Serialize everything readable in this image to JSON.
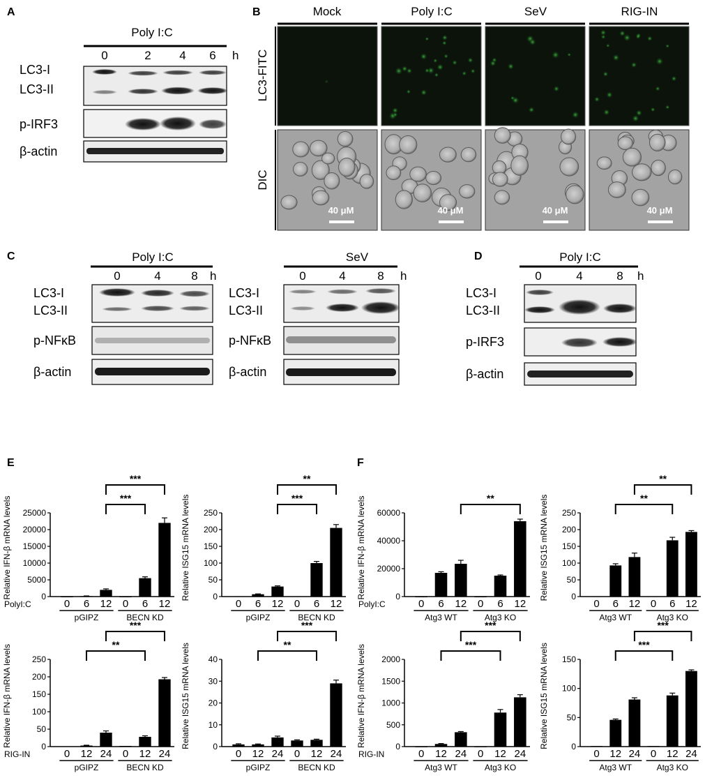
{
  "panels": {
    "A": {
      "letter": "A",
      "treatment": "Poly I:C",
      "times": [
        "0",
        "2",
        "4",
        "6"
      ],
      "unit": "h",
      "rows": [
        "LC3-I",
        "LC3-II",
        "p-IRF3",
        "β-actin"
      ]
    },
    "B": {
      "letter": "B",
      "columns": [
        "Mock",
        "Poly I:C",
        "SeV",
        "RIG-IN"
      ],
      "rows": [
        "LC3-FITC",
        "DIC"
      ],
      "scale": "40 μM"
    },
    "C": {
      "letter": "C",
      "left": {
        "treatment": "Poly I:C",
        "times": [
          "0",
          "4",
          "8"
        ],
        "unit": "h",
        "rows": [
          "LC3-I",
          "LC3-II",
          "p-NFκB",
          "β-actin"
        ]
      },
      "right": {
        "treatment": "SeV",
        "times": [
          "0",
          "4",
          "8"
        ],
        "unit": "h",
        "rows": [
          "LC3-I",
          "LC3-II",
          "p-NFκB",
          "β-actin"
        ]
      }
    },
    "D": {
      "letter": "D",
      "treatment": "Poly I:C",
      "times": [
        "0",
        "4",
        "8"
      ],
      "unit": "h",
      "rows": [
        "LC3-I",
        "LC3-II",
        "p-IRF3",
        "β-actin"
      ]
    },
    "E": {
      "letter": "E"
    },
    "F": {
      "letter": "F"
    }
  },
  "chart_data": [
    {
      "type": "bar",
      "panel": "E",
      "ylabel": "Relative IFN-β mRNA levels",
      "ylim": [
        0,
        25000
      ],
      "yticks": [
        0,
        5000,
        10000,
        15000,
        20000,
        25000
      ],
      "condition": "PolyI:C",
      "categories": [
        "0",
        "6",
        "12",
        "0",
        "6",
        "12"
      ],
      "groups": [
        {
          "label": "pGIPZ",
          "n": 3
        },
        {
          "label": "BECN KD",
          "n": 3
        }
      ],
      "values": [
        0,
        150,
        2000,
        0,
        5500,
        22000
      ],
      "errors": [
        0,
        50,
        300,
        0,
        400,
        1500
      ],
      "significance": [
        {
          "from": 2,
          "to": 4,
          "label": "***"
        },
        {
          "from": 2,
          "to": 5,
          "label": "***"
        }
      ]
    },
    {
      "type": "bar",
      "panel": "E",
      "ylabel": "Relative ISG15 mRNA levels",
      "ylim": [
        0,
        250
      ],
      "yticks": [
        0,
        50,
        100,
        150,
        200,
        250
      ],
      "condition": "",
      "categories": [
        "0",
        "6",
        "12",
        "0",
        "6",
        "12"
      ],
      "groups": [
        {
          "label": "pGIPZ",
          "n": 3
        },
        {
          "label": "BECN KD",
          "n": 3
        }
      ],
      "values": [
        1,
        7,
        30,
        1,
        100,
        205
      ],
      "errors": [
        0,
        1,
        2,
        0,
        5,
        10
      ],
      "significance": [
        {
          "from": 2,
          "to": 4,
          "label": "***"
        },
        {
          "from": 2,
          "to": 5,
          "label": "**"
        }
      ]
    },
    {
      "type": "bar",
      "panel": "F",
      "ylabel": "Relative IFN-β mRNA levels",
      "ylim": [
        0,
        60000
      ],
      "yticks": [
        0,
        20000,
        40000,
        60000
      ],
      "condition": "PolyI:C",
      "categories": [
        "0",
        "6",
        "12",
        "0",
        "6",
        "12"
      ],
      "groups": [
        {
          "label": "Atg3 WT",
          "n": 3
        },
        {
          "label": "Atg3 KO",
          "n": 3
        }
      ],
      "values": [
        0,
        17000,
        23500,
        0,
        15000,
        54000
      ],
      "errors": [
        0,
        800,
        2500,
        0,
        500,
        1500
      ],
      "significance": [
        {
          "from": 2,
          "to": 5,
          "label": "**"
        }
      ]
    },
    {
      "type": "bar",
      "panel": "F",
      "ylabel": "Relative ISG15 mRNA levels",
      "ylim": [
        0,
        250
      ],
      "yticks": [
        0,
        50,
        100,
        150,
        200,
        250
      ],
      "condition": "",
      "categories": [
        "0",
        "6",
        "12",
        "0",
        "6",
        "12"
      ],
      "groups": [
        {
          "label": "Atg3 WT",
          "n": 3
        },
        {
          "label": "Atg3 KO",
          "n": 3
        }
      ],
      "values": [
        1,
        93,
        118,
        1,
        168,
        193
      ],
      "errors": [
        0,
        5,
        12,
        0,
        9,
        4
      ],
      "significance": [
        {
          "from": 1,
          "to": 4,
          "label": "**"
        },
        {
          "from": 2,
          "to": 5,
          "label": "**"
        }
      ]
    },
    {
      "type": "bar",
      "panel": "E",
      "ylabel": "Relative IFN-β mRNA levels",
      "ylim": [
        0,
        250
      ],
      "yticks": [
        0,
        50,
        100,
        150,
        200,
        250
      ],
      "condition": "RIG-IN",
      "categories": [
        "0",
        "12",
        "24",
        "0",
        "12",
        "24"
      ],
      "groups": [
        {
          "label": "pGIPZ",
          "n": 3
        },
        {
          "label": "BECN KD",
          "n": 3
        }
      ],
      "values": [
        1,
        3,
        40,
        2,
        28,
        193
      ],
      "errors": [
        0,
        1,
        5,
        0,
        3,
        5
      ],
      "significance": [
        {
          "from": 1,
          "to": 4,
          "label": "**"
        },
        {
          "from": 2,
          "to": 5,
          "label": "***"
        }
      ]
    },
    {
      "type": "bar",
      "panel": "E",
      "ylabel": "Relative ISG15 mRNA levels",
      "ylim": [
        0,
        40
      ],
      "yticks": [
        0,
        10,
        20,
        30,
        40
      ],
      "condition": "",
      "categories": [
        "0",
        "12",
        "24",
        "0",
        "12",
        "24"
      ],
      "groups": [
        {
          "label": "pGIPZ",
          "n": 3
        },
        {
          "label": "BECN KD",
          "n": 3
        }
      ],
      "values": [
        1,
        1,
        4.2,
        2.8,
        3.1,
        29
      ],
      "errors": [
        0.3,
        0.2,
        0.6,
        0.3,
        0.3,
        1.5
      ],
      "significance": [
        {
          "from": 1,
          "to": 4,
          "label": "**"
        },
        {
          "from": 2,
          "to": 5,
          "label": "***"
        }
      ]
    },
    {
      "type": "bar",
      "panel": "F",
      "ylabel": "Relative IFN-β mRNA levels",
      "ylim": [
        0,
        2000
      ],
      "yticks": [
        0,
        500,
        1000,
        1500,
        2000
      ],
      "condition": "RIG-IN",
      "categories": [
        "0",
        "12",
        "24",
        "0",
        "12",
        "24"
      ],
      "groups": [
        {
          "label": "Atg3 WT",
          "n": 3
        },
        {
          "label": "Atg3 KO",
          "n": 3
        }
      ],
      "values": [
        1,
        60,
        330,
        2,
        780,
        1130
      ],
      "errors": [
        0,
        10,
        15,
        0,
        70,
        60
      ],
      "significance": [
        {
          "from": 1,
          "to": 4,
          "label": "***"
        },
        {
          "from": 2,
          "to": 5,
          "label": "***"
        }
      ]
    },
    {
      "type": "bar",
      "panel": "F",
      "ylabel": "Relative ISG15 mRNA levels",
      "ylim": [
        0,
        150
      ],
      "yticks": [
        0,
        50,
        100,
        150
      ],
      "condition": "",
      "categories": [
        "0",
        "12",
        "24",
        "0",
        "12",
        "24"
      ],
      "groups": [
        {
          "label": "Atg3 WT",
          "n": 3
        },
        {
          "label": "Atg3 KO",
          "n": 3
        }
      ],
      "values": [
        1,
        46,
        81,
        1,
        88,
        130
      ],
      "errors": [
        0,
        1.5,
        3,
        0,
        4,
        2
      ],
      "significance": [
        {
          "from": 1,
          "to": 4,
          "label": "***"
        },
        {
          "from": 2,
          "to": 5,
          "label": "***"
        }
      ]
    }
  ]
}
